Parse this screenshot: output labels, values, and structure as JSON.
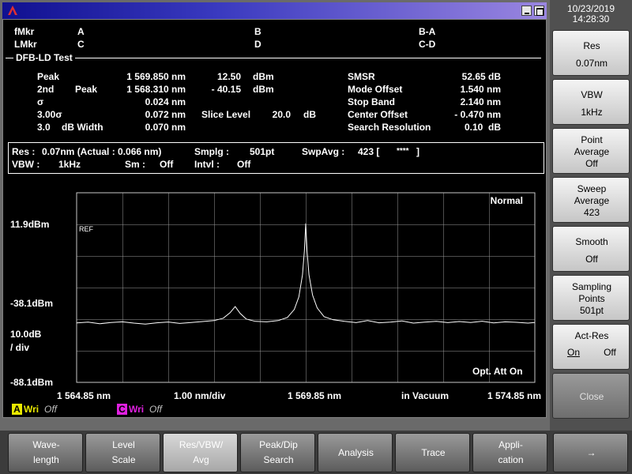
{
  "status": {
    "date": "10/23/2019",
    "time": "14:28:30"
  },
  "markers": {
    "rows": [
      [
        "fMkr",
        "A",
        "B",
        "B-A"
      ],
      [
        "LMkr",
        "C",
        "D",
        "C-D"
      ]
    ]
  },
  "test": {
    "title": "DFB-LD Test",
    "peak": {
      "label": "Peak",
      "wavelength": "1 569.850 nm",
      "level": "12.50",
      "unit": "dBm"
    },
    "second_peak": {
      "label": "2nd",
      "label2": "Peak",
      "wavelength": "1 568.310 nm",
      "level": "- 40.15",
      "unit": "dBm"
    },
    "sigma": {
      "label": "σ",
      "value": "0.024 nm"
    },
    "three_sigma": {
      "label": "3.00σ",
      "value": "0.072 nm"
    },
    "slice_level": {
      "label": "Slice Level",
      "value": "20.0",
      "unit": "dB"
    },
    "db_width": {
      "label": "3.0",
      "label2": "dB Width",
      "value": "0.070 nm"
    },
    "results": [
      [
        "SMSR",
        "52.65 dB"
      ],
      [
        "Mode Offset",
        "1.540 nm"
      ],
      [
        "Stop Band",
        "2.140 nm"
      ],
      [
        "Center Offset",
        "- 0.470 nm"
      ],
      [
        "Search Resolution",
        "0.10  dB"
      ]
    ]
  },
  "settings": {
    "res_label": "Res :",
    "res_value": "0.07nm (Actual : 0.066 nm)",
    "smplg_label": "Smplg :",
    "smplg_value": "501pt",
    "swpavg_label": "SwpAvg :",
    "swpavg_value": "423 [",
    "swpavg_count": "****",
    "swpavg_close": "]",
    "vbw_label": "VBW :",
    "vbw_value": "1kHz",
    "sm_label": "Sm :",
    "sm_value": "Off",
    "intvl_label": "Intvl :",
    "intvl_value": "Off"
  },
  "graph": {
    "mode": "Normal",
    "ref": "REF",
    "y_labels": [
      {
        "value": 11.9,
        "label": "11.9dBm"
      },
      {
        "value": -38.1,
        "label": "-38.1dBm"
      },
      {
        "value": -88.1,
        "label": "-88.1dBm"
      }
    ],
    "scale": [
      "10.0dB",
      "/ div"
    ],
    "x_labels": [
      {
        "value": 1564.85,
        "label": "1 564.85 nm"
      },
      {
        "value": 1569.85,
        "label": "1 569.85 nm"
      },
      {
        "value": 1574.85,
        "label": "1 574.85 nm"
      }
    ],
    "span": "1.00 nm/div",
    "medium": "in Vacuum",
    "attenuator": "Opt. Att On",
    "trace": {
      "color": "#ffffff",
      "x": [
        1564.85,
        1565.1,
        1565.35,
        1565.6,
        1565.85,
        1566.1,
        1566.35,
        1566.6,
        1566.85,
        1567.1,
        1567.35,
        1567.6,
        1567.85,
        1568.05,
        1568.2,
        1568.31,
        1568.42,
        1568.55,
        1568.75,
        1569.0,
        1569.25,
        1569.45,
        1569.6,
        1569.7,
        1569.78,
        1569.82,
        1569.85,
        1569.88,
        1569.92,
        1570.0,
        1570.1,
        1570.25,
        1570.45,
        1570.7,
        1570.95,
        1571.2,
        1571.45,
        1571.7,
        1571.95,
        1572.2,
        1572.45,
        1572.7,
        1572.95,
        1573.2,
        1573.45,
        1573.7,
        1573.95,
        1574.2,
        1574.45,
        1574.7,
        1574.85
      ],
      "y": [
        -50.5,
        -50.0,
        -51.0,
        -50.2,
        -49.8,
        -50.6,
        -51.2,
        -50.4,
        -49.9,
        -50.8,
        -50.2,
        -49.6,
        -49.0,
        -47.5,
        -44.0,
        -40.15,
        -44.5,
        -48.0,
        -49.5,
        -49.8,
        -49.0,
        -47.0,
        -42.0,
        -34.0,
        -20.0,
        -5.0,
        12.5,
        -5.0,
        -20.0,
        -33.0,
        -41.0,
        -46.5,
        -48.5,
        -49.5,
        -50.3,
        -49.0,
        -50.4,
        -50.0,
        -49.2,
        -50.6,
        -50.0,
        -49.5,
        -50.3,
        -49.6,
        -50.2,
        -49.4,
        -50.5,
        -49.8,
        -50.1,
        -50.6,
        -50.2
      ]
    },
    "traces": [
      {
        "id": "A",
        "mode": "Wri",
        "state": "Off",
        "color": "#e8e800"
      },
      {
        "id": "C",
        "mode": "Wri",
        "state": "Off",
        "color": "#e020e0"
      }
    ]
  },
  "side_menu": [
    {
      "lines": [
        "Res"
      ],
      "value": "0.07nm"
    },
    {
      "lines": [
        "VBW"
      ],
      "value": "1kHz"
    },
    {
      "lines": [
        "Point",
        "Average"
      ],
      "value": "Off"
    },
    {
      "lines": [
        "Sweep",
        "Average"
      ],
      "value": "423"
    },
    {
      "lines": [
        "Smooth"
      ],
      "value": "Off"
    },
    {
      "lines": [
        "Sampling",
        "Points"
      ],
      "value": "501pt"
    },
    {
      "lines": [
        "Act-Res"
      ],
      "options": [
        "On",
        "Off"
      ]
    },
    {
      "lines": [
        "Close"
      ]
    }
  ],
  "bottom_menu": [
    [
      "Wave-",
      "length"
    ],
    [
      "Level",
      "Scale"
    ],
    [
      "Res/VBW/",
      "Avg"
    ],
    [
      "Peak/Dip",
      "Search"
    ],
    [
      "Analysis"
    ],
    [
      "Trace"
    ],
    [
      "Appli-",
      "cation"
    ],
    [
      "→"
    ]
  ]
}
